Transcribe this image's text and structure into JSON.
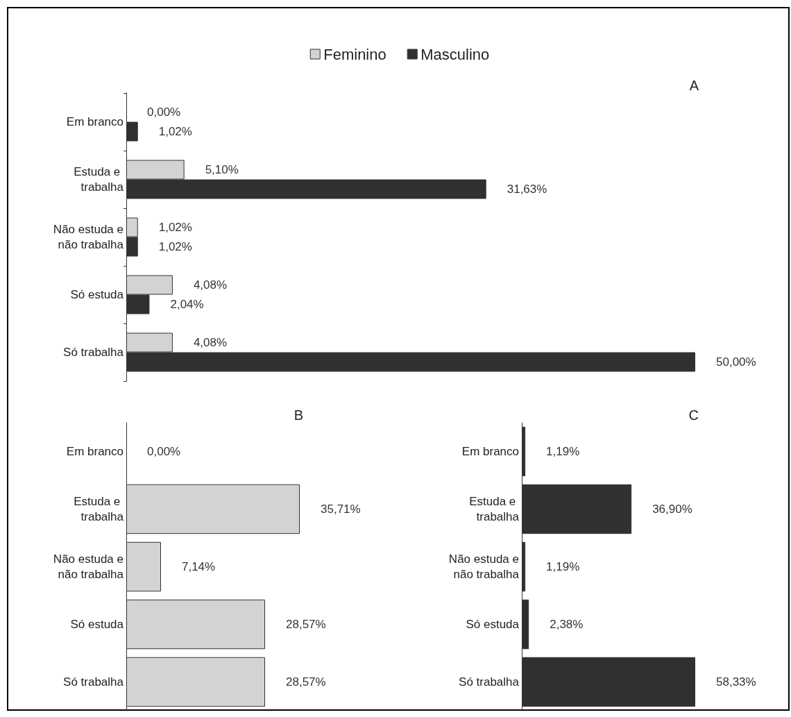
{
  "chart_data": [
    {
      "type": "bar",
      "orientation": "horizontal",
      "title": "A",
      "legend": "top",
      "categories": [
        "Em branco",
        "Estuda e trabalha",
        "Não estuda e não trabalha",
        "Só estuda",
        "Só trabalha"
      ],
      "series": [
        {
          "name": "Feminino",
          "color": "#d3d3d3",
          "values": [
            0,
            5.1,
            1.02,
            4.08,
            4.08
          ],
          "value_labels": [
            "0,00%",
            "5,10%",
            "1,02%",
            "4,08%",
            "4,08%"
          ]
        },
        {
          "name": "Masculino",
          "color": "#303030",
          "values": [
            1.02,
            31.63,
            1.02,
            2.04,
            50.0
          ],
          "value_labels": [
            "1,02%",
            "31,63%",
            "1,02%",
            "2,04%",
            "50,00%"
          ]
        }
      ]
    },
    {
      "type": "bar",
      "orientation": "horizontal",
      "title": "B",
      "categories": [
        "Em branco",
        "Estuda e trabalha",
        "Não estuda e não trabalha",
        "Só estuda",
        "Só trabalha"
      ],
      "series": [
        {
          "color": "#d3d3d3",
          "values": [
            0,
            35.71,
            7.14,
            28.57,
            28.57
          ],
          "value_labels": [
            "0,00%",
            "35,71%",
            "7,14%",
            "28,57%",
            "28,57%"
          ]
        }
      ]
    },
    {
      "type": "bar",
      "orientation": "horizontal",
      "title": "C",
      "categories": [
        "Em branco",
        "Estuda e trabalha",
        "Não estuda e não trabalha",
        "Só estuda",
        "Só trabalha"
      ],
      "series": [
        {
          "color": "#303030",
          "values": [
            1.19,
            36.9,
            1.19,
            2.38,
            58.33
          ],
          "value_labels": [
            "1,19%",
            "36,90%",
            "1,19%",
            "2,38%",
            "58,33%"
          ]
        }
      ]
    }
  ]
}
